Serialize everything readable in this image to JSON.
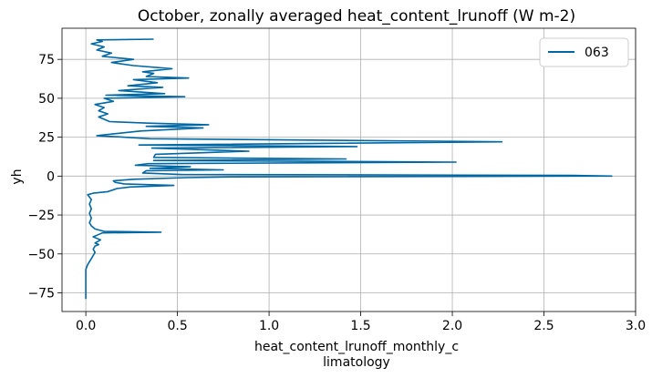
{
  "chart_data": {
    "type": "line",
    "title": "October, zonally averaged heat_content_lrunoff (W m-2)",
    "xlabel_lines": [
      "heat_content_lrunoff_monthly_c",
      "limatology"
    ],
    "ylabel": "yh",
    "xlim": [
      -0.13,
      3.0
    ],
    "ylim": [
      -87,
      95
    ],
    "xticks": [
      0.0,
      0.5,
      1.0,
      1.5,
      2.0,
      2.5,
      3.0
    ],
    "xtick_labels": [
      "0.0",
      "0.5",
      "1.0",
      "1.5",
      "2.0",
      "2.5",
      "3.0"
    ],
    "yticks": [
      -75,
      -50,
      -25,
      0,
      25,
      50,
      75
    ],
    "ytick_labels": [
      "−75",
      "−50",
      "−25",
      "0",
      "25",
      "50",
      "75"
    ],
    "grid": true,
    "legend_position": "top-right",
    "series": [
      {
        "name": "063",
        "color": "#0067a3",
        "points": [
          [
            0.0,
            -79
          ],
          [
            0.0,
            -70
          ],
          [
            0.0,
            -60
          ],
          [
            0.01,
            -57
          ],
          [
            0.02,
            -55
          ],
          [
            0.03,
            -53
          ],
          [
            0.04,
            -51
          ],
          [
            0.05,
            -49
          ],
          [
            0.04,
            -47
          ],
          [
            0.05,
            -45
          ],
          [
            0.07,
            -44
          ],
          [
            0.05,
            -43
          ],
          [
            0.08,
            -41
          ],
          [
            0.06,
            -40
          ],
          [
            0.04,
            -39
          ],
          [
            0.06,
            -38
          ],
          [
            0.09,
            -36.5
          ],
          [
            0.41,
            -36
          ],
          [
            0.1,
            -35.5
          ],
          [
            0.05,
            -34
          ],
          [
            0.03,
            -32
          ],
          [
            0.02,
            -30
          ],
          [
            0.03,
            -27
          ],
          [
            0.02,
            -24
          ],
          [
            0.03,
            -21
          ],
          [
            0.02,
            -18
          ],
          [
            0.03,
            -15
          ],
          [
            0.01,
            -12
          ],
          [
            0.04,
            -11
          ],
          [
            0.12,
            -10
          ],
          [
            0.17,
            -8
          ],
          [
            0.24,
            -7
          ],
          [
            0.48,
            -6
          ],
          [
            0.21,
            -5
          ],
          [
            0.16,
            -4
          ],
          [
            0.15,
            -3
          ],
          [
            0.26,
            -2
          ],
          [
            0.55,
            -1
          ],
          [
            0.8,
            -0.5
          ],
          [
            2.87,
            0
          ],
          [
            2.66,
            0.5
          ],
          [
            0.52,
            1
          ],
          [
            0.31,
            2
          ],
          [
            0.33,
            3.5
          ],
          [
            0.75,
            4
          ],
          [
            0.35,
            5
          ],
          [
            0.57,
            6
          ],
          [
            0.27,
            7
          ],
          [
            0.34,
            8
          ],
          [
            2.02,
            9
          ],
          [
            0.37,
            10
          ],
          [
            1.42,
            11
          ],
          [
            0.37,
            12
          ],
          [
            0.38,
            14
          ],
          [
            0.89,
            16
          ],
          [
            0.36,
            18
          ],
          [
            1.48,
            19
          ],
          [
            0.29,
            20
          ],
          [
            2.27,
            22
          ],
          [
            0.35,
            24
          ],
          [
            0.06,
            26
          ],
          [
            0.3,
            29
          ],
          [
            0.64,
            31
          ],
          [
            0.33,
            32
          ],
          [
            0.67,
            33
          ],
          [
            0.34,
            34
          ],
          [
            0.13,
            35
          ],
          [
            0.07,
            38
          ],
          [
            0.12,
            40
          ],
          [
            0.07,
            42
          ],
          [
            0.1,
            44
          ],
          [
            0.05,
            46
          ],
          [
            0.15,
            48
          ],
          [
            0.1,
            50
          ],
          [
            0.54,
            51
          ],
          [
            0.11,
            52
          ],
          [
            0.43,
            53
          ],
          [
            0.18,
            55
          ],
          [
            0.42,
            57
          ],
          [
            0.23,
            58
          ],
          [
            0.39,
            60
          ],
          [
            0.26,
            62
          ],
          [
            0.56,
            63
          ],
          [
            0.33,
            64
          ],
          [
            0.37,
            66
          ],
          [
            0.31,
            67
          ],
          [
            0.47,
            69
          ],
          [
            0.26,
            71
          ],
          [
            0.14,
            73
          ],
          [
            0.26,
            75
          ],
          [
            0.09,
            77
          ],
          [
            0.14,
            79
          ],
          [
            0.06,
            81
          ],
          [
            0.1,
            83
          ],
          [
            0.03,
            85
          ],
          [
            0.09,
            86.5
          ],
          [
            0.06,
            87.5
          ],
          [
            0.37,
            88
          ]
        ]
      }
    ]
  }
}
